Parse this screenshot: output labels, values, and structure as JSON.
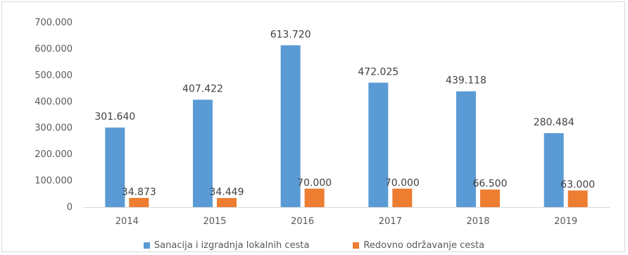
{
  "chart_data": {
    "type": "bar",
    "categories": [
      "2014",
      "2015",
      "2016",
      "2017",
      "2018",
      "2019"
    ],
    "series": [
      {
        "name": "Sanacija i izgradnja lokalnih cesta",
        "values": [
          301640,
          407422,
          613720,
          472025,
          439118,
          280484
        ],
        "labels": [
          "301.640",
          "407.422",
          "613.720",
          "472.025",
          "439.118",
          "280.484"
        ],
        "color": "#5b9bd5"
      },
      {
        "name": "Redovno održavanje cesta",
        "values": [
          34873,
          34449,
          70000,
          70000,
          66500,
          63000
        ],
        "labels": [
          "34.873",
          "34.449",
          "70.000",
          "70.000",
          "66.500",
          "63.000"
        ],
        "color": "#ed7d31"
      }
    ],
    "ylim": [
      0,
      700000
    ],
    "yticks": [
      0,
      100000,
      200000,
      300000,
      400000,
      500000,
      600000,
      700000
    ],
    "ytick_labels": [
      "0",
      "100.000",
      "200.000",
      "300.000",
      "400.000",
      "500.000",
      "600.000",
      "700.000"
    ],
    "grid": false,
    "legend_position": "bottom"
  }
}
